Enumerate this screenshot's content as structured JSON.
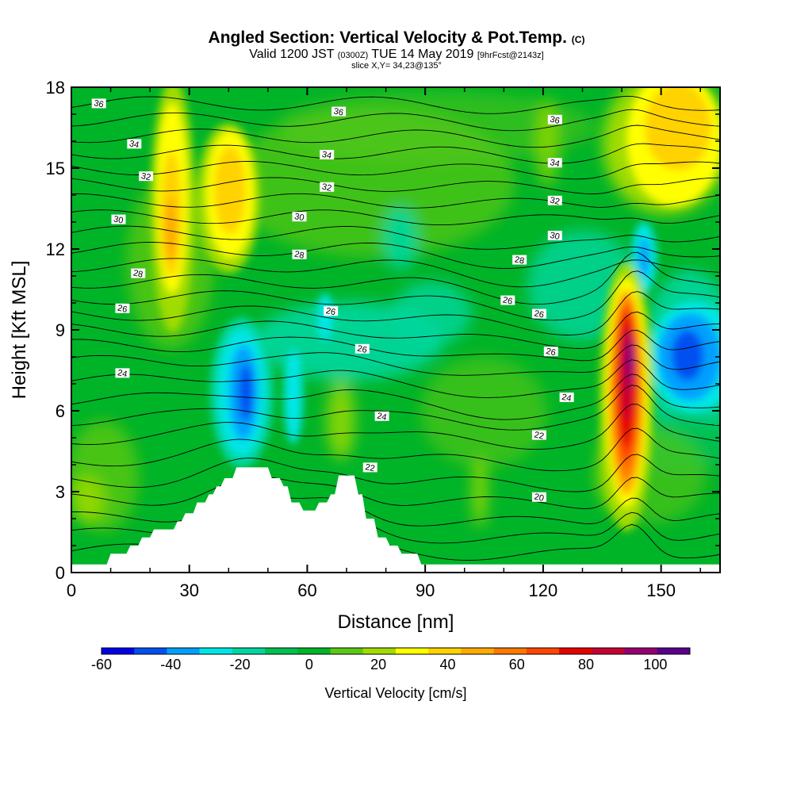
{
  "header": {
    "title": "Angled Section: Vertical Velocity & Pot.Temp.",
    "title_suffix": "(C)",
    "valid_main": "Valid 1200 JST",
    "valid_zulu": "(0300Z)",
    "valid_date": "TUE 14 May 2019",
    "forecast": "[9hrFcst@2143z]",
    "slice": "slice X,Y= 34,23@135°"
  },
  "chart_data": {
    "type": "heatmap",
    "xlabel": "Distance [nm]",
    "ylabel": "Height [Kft MSL]",
    "xlim": [
      0,
      165
    ],
    "ylim": [
      0,
      18
    ],
    "x_ticks": [
      0,
      30,
      60,
      90,
      120,
      150
    ],
    "y_ticks": [
      0,
      3,
      6,
      9,
      12,
      15,
      18
    ],
    "colorbar": {
      "label": "Vertical Velocity [cm/s]",
      "tick_labels": [
        "-60",
        "-40",
        "-20",
        "0",
        "20",
        "40",
        "60",
        "80",
        "100"
      ],
      "levels": [
        -60,
        -50,
        -40,
        -30,
        -20,
        -10,
        0,
        10,
        20,
        30,
        40,
        50,
        60,
        70,
        80,
        90,
        100,
        110
      ],
      "colors": [
        "#0000e6",
        "#0050f0",
        "#00a0ff",
        "#00e6e6",
        "#00d7a0",
        "#00c050",
        "#00b428",
        "#5ac814",
        "#a0dc00",
        "#ffff00",
        "#ffd200",
        "#ffaa00",
        "#ff7800",
        "#ff4600",
        "#e60000",
        "#c80032",
        "#96006e",
        "#5a008c"
      ]
    },
    "features": [
      {
        "name": "updraft",
        "x": 141.5,
        "y": 7.5,
        "peak": 110
      },
      {
        "name": "updraft",
        "x": 26,
        "y": 12.5,
        "peak": 55
      },
      {
        "name": "updraft",
        "x": 39,
        "y": 14,
        "peak": 40
      },
      {
        "name": "updraft",
        "x": 158,
        "y": 16.5,
        "peak": 40
      },
      {
        "name": "downdraft",
        "x": 45,
        "y": 6.8,
        "peak": -55
      },
      {
        "name": "downdraft",
        "x": 155,
        "y": 8.3,
        "peak": -45
      },
      {
        "name": "downdraft",
        "x": 146,
        "y": 11.5,
        "peak": -30
      }
    ],
    "isentrope_labels": [
      {
        "text": "36",
        "x": 7,
        "y": 17.4
      },
      {
        "text": "36",
        "x": 68,
        "y": 17.1
      },
      {
        "text": "36",
        "x": 123,
        "y": 16.8
      },
      {
        "text": "34",
        "x": 16,
        "y": 15.9
      },
      {
        "text": "34",
        "x": 65,
        "y": 15.5
      },
      {
        "text": "34",
        "x": 123,
        "y": 15.2
      },
      {
        "text": "32",
        "x": 19,
        "y": 14.7
      },
      {
        "text": "32",
        "x": 65,
        "y": 14.3
      },
      {
        "text": "32",
        "x": 123,
        "y": 13.8
      },
      {
        "text": "30",
        "x": 12,
        "y": 13.1
      },
      {
        "text": "30",
        "x": 58,
        "y": 13.2
      },
      {
        "text": "30",
        "x": 123,
        "y": 12.5
      },
      {
        "text": "28",
        "x": 17,
        "y": 11.1
      },
      {
        "text": "28",
        "x": 58,
        "y": 11.8
      },
      {
        "text": "28",
        "x": 114,
        "y": 11.6
      },
      {
        "text": "26",
        "x": 13,
        "y": 9.8
      },
      {
        "text": "26",
        "x": 66,
        "y": 9.7
      },
      {
        "text": "26",
        "x": 111,
        "y": 10.1
      },
      {
        "text": "26",
        "x": 119,
        "y": 9.6
      },
      {
        "text": "26",
        "x": 74,
        "y": 8.3
      },
      {
        "text": "26",
        "x": 122,
        "y": 8.2
      },
      {
        "text": "24",
        "x": 13,
        "y": 7.4
      },
      {
        "text": "24",
        "x": 79,
        "y": 5.8
      },
      {
        "text": "24",
        "x": 126,
        "y": 6.5
      },
      {
        "text": "22",
        "x": 76,
        "y": 3.9
      },
      {
        "text": "22",
        "x": 119,
        "y": 5.1
      },
      {
        "text": "20",
        "x": 119,
        "y": 2.8
      }
    ],
    "terrain": [
      [
        0,
        0.3
      ],
      [
        9,
        0.3
      ],
      [
        10,
        0.7
      ],
      [
        14,
        0.7
      ],
      [
        15,
        1.0
      ],
      [
        17,
        1.0
      ],
      [
        18,
        1.3
      ],
      [
        20,
        1.3
      ],
      [
        21,
        1.6
      ],
      [
        26,
        1.6
      ],
      [
        27,
        1.9
      ],
      [
        28,
        1.9
      ],
      [
        29,
        2.2
      ],
      [
        31,
        2.2
      ],
      [
        32,
        2.6
      ],
      [
        34,
        2.6
      ],
      [
        35,
        2.9
      ],
      [
        36,
        2.9
      ],
      [
        37,
        3.2
      ],
      [
        38,
        3.2
      ],
      [
        39,
        3.5
      ],
      [
        41,
        3.5
      ],
      [
        42,
        3.9
      ],
      [
        50,
        3.9
      ],
      [
        51,
        3.5
      ],
      [
        53,
        3.5
      ],
      [
        54,
        3.2
      ],
      [
        55,
        3.2
      ],
      [
        56,
        2.6
      ],
      [
        58,
        2.6
      ],
      [
        59,
        2.3
      ],
      [
        62,
        2.3
      ],
      [
        63,
        2.6
      ],
      [
        65,
        2.6
      ],
      [
        66,
        2.9
      ],
      [
        67,
        2.9
      ],
      [
        68,
        3.6
      ],
      [
        72,
        3.6
      ],
      [
        73,
        2.9
      ],
      [
        74,
        2.9
      ],
      [
        75,
        2.0
      ],
      [
        77,
        2.0
      ],
      [
        78,
        1.3
      ],
      [
        80,
        1.3
      ],
      [
        81,
        1.0
      ],
      [
        83,
        1.0
      ],
      [
        84,
        0.7
      ],
      [
        88,
        0.7
      ],
      [
        89,
        0.3
      ],
      [
        165,
        0.3
      ]
    ]
  }
}
